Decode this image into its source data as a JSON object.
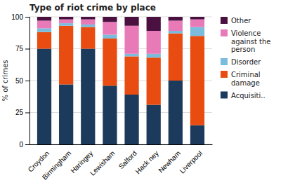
{
  "chart_data": {
    "type": "bar",
    "stacked": true,
    "title": "Type of riot crime by place",
    "ylabel": "% of crimes",
    "categories": [
      "Croydon",
      "Birmingham",
      "Haringey",
      "Lewisham",
      "Salford",
      "Hack ney",
      "Newham",
      "Liverpool"
    ],
    "series": [
      {
        "name": "Acquisiti..",
        "color": "#1b3a5c",
        "values": [
          75,
          47,
          75,
          46,
          39,
          31,
          50,
          15
        ]
      },
      {
        "name": "Criminal damage",
        "color": "#e84c10",
        "values": [
          13,
          46,
          17,
          37,
          30,
          37,
          37,
          70
        ]
      },
      {
        "name": "Disorder",
        "color": "#7bbcdc",
        "values": [
          3,
          2,
          2,
          3,
          2,
          3,
          2,
          7
        ]
      },
      {
        "name": "Violence against the person",
        "color": "#e87ab8",
        "values": [
          6,
          3,
          4,
          10,
          22,
          18,
          8,
          6
        ]
      },
      {
        "name": "Other",
        "color": "#4a1040",
        "values": [
          3,
          2,
          2,
          4,
          7,
          11,
          3,
          2
        ]
      }
    ],
    "ylim": [
      0,
      100
    ],
    "yticks": [
      0,
      25,
      50,
      75,
      100
    ],
    "grid": true,
    "legend": "right"
  }
}
